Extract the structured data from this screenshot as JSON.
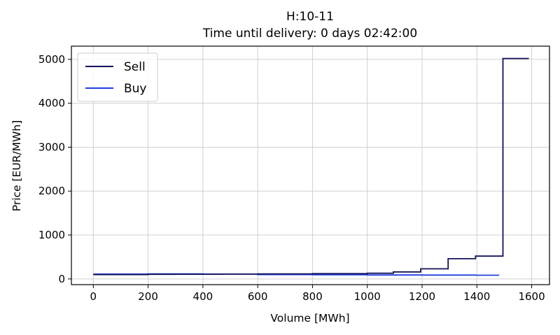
{
  "chart_data": {
    "type": "line",
    "line_shape": "step",
    "title": "H:10-11",
    "subtitle": "Time until delivery: 0 days 02:42:00",
    "xlabel": "Volume [MWh]",
    "ylabel": "Price [EUR/MWh]",
    "xlim": [
      -80,
      1665
    ],
    "ylim": [
      -130,
      5300
    ],
    "xticks": [
      0,
      200,
      400,
      600,
      800,
      1000,
      1200,
      1400,
      1600
    ],
    "yticks": [
      0,
      1000,
      2000,
      3000,
      4000,
      5000
    ],
    "grid": true,
    "legend_position": "top-left",
    "series": [
      {
        "name": "Sell",
        "color": "#12125a",
        "x": [
          0,
          200,
          300,
          470,
          600,
          800,
          1000,
          1095,
          1195,
          1295,
          1395,
          1495,
          1590
        ],
        "y": [
          100,
          105,
          108,
          110,
          115,
          120,
          130,
          160,
          230,
          460,
          520,
          5020,
          5020
        ]
      },
      {
        "name": "Buy",
        "color": "#1f3fe0",
        "x": [
          0,
          200,
          400,
          600,
          800,
          1000,
          1200,
          1395,
          1480
        ],
        "y": [
          110,
          115,
          110,
          100,
          95,
          90,
          88,
          85,
          82
        ]
      }
    ]
  }
}
